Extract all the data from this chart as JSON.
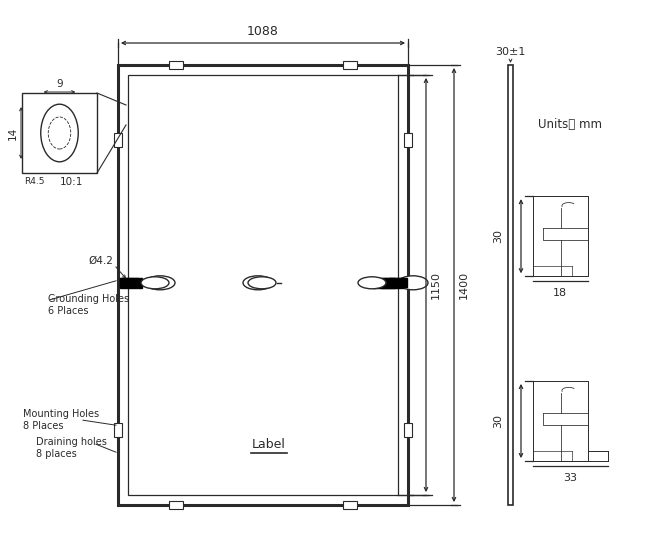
{
  "bg_color": "#ffffff",
  "line_color": "#2a2a2a",
  "dim_1088_text": "1088",
  "dim_1400_text": "1400",
  "dim_1150_text": "1150",
  "dim_30pm1_text": "30±1",
  "units_text": "Units： mm",
  "grounding_holes_label": "Grounding Holes\n6 Places",
  "mounting_holes_label": "Mounting Holes\n8 Places",
  "draining_holes_label": "Draining holes\n8 places",
  "dia_label": "Ø4.2",
  "label_text": "Label",
  "hole_detail_9": "9",
  "hole_detail_14": "14",
  "hole_detail_r45": "R4.5",
  "hole_detail_scale": "10:1",
  "dim_18": "18",
  "dim_33": "33",
  "dim_30a": "30",
  "dim_30b": "30"
}
